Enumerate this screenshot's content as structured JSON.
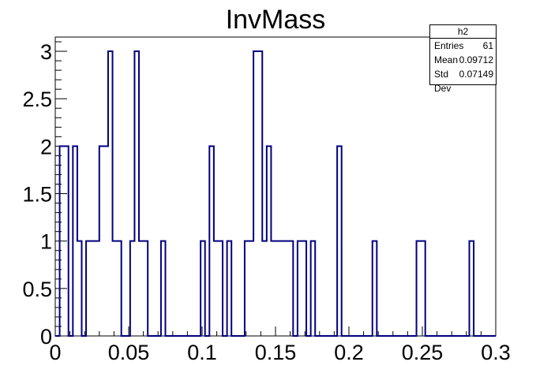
{
  "chart_data": {
    "type": "bar",
    "title": "InvMass",
    "xlabel": "",
    "ylabel": "",
    "xlim": [
      0,
      0.3
    ],
    "ylim": [
      0,
      3.15
    ],
    "xticks": [
      "0",
      "0.05",
      "0.1",
      "0.15",
      "0.2",
      "0.25",
      "0.3"
    ],
    "yticks": [
      "0",
      "0.5",
      "1",
      "1.5",
      "2",
      "2.5",
      "3"
    ],
    "bin_width": 0.003,
    "series": [
      {
        "name": "h2",
        "color": "#000080",
        "bins": [
          [
            0.003,
            2
          ],
          [
            0.006,
            2
          ],
          [
            0.012,
            2
          ],
          [
            0.015,
            1
          ],
          [
            0.021,
            1
          ],
          [
            0.024,
            1
          ],
          [
            0.027,
            1
          ],
          [
            0.03,
            2
          ],
          [
            0.033,
            2
          ],
          [
            0.036,
            3
          ],
          [
            0.039,
            1
          ],
          [
            0.042,
            1
          ],
          [
            0.051,
            1
          ],
          [
            0.054,
            3
          ],
          [
            0.057,
            1
          ],
          [
            0.06,
            1
          ],
          [
            0.072,
            1
          ],
          [
            0.099,
            1
          ],
          [
            0.105,
            2
          ],
          [
            0.108,
            1
          ],
          [
            0.111,
            1
          ],
          [
            0.117,
            1
          ],
          [
            0.129,
            1
          ],
          [
            0.132,
            1
          ],
          [
            0.135,
            3
          ],
          [
            0.138,
            3
          ],
          [
            0.141,
            1
          ],
          [
            0.144,
            2
          ],
          [
            0.147,
            1
          ],
          [
            0.15,
            1
          ],
          [
            0.153,
            1
          ],
          [
            0.156,
            1
          ],
          [
            0.159,
            1
          ],
          [
            0.165,
            1
          ],
          [
            0.168,
            1
          ],
          [
            0.174,
            1
          ],
          [
            0.192,
            2
          ],
          [
            0.216,
            1
          ],
          [
            0.246,
            1
          ],
          [
            0.249,
            1
          ],
          [
            0.282,
            1
          ]
        ]
      }
    ]
  },
  "statbox": {
    "name": "h2",
    "entries_label": "Entries",
    "entries_value": "61",
    "mean_label": "Mean",
    "mean_value": "0.09712",
    "std_label": "Std Dev",
    "std_value": "0.07149"
  }
}
